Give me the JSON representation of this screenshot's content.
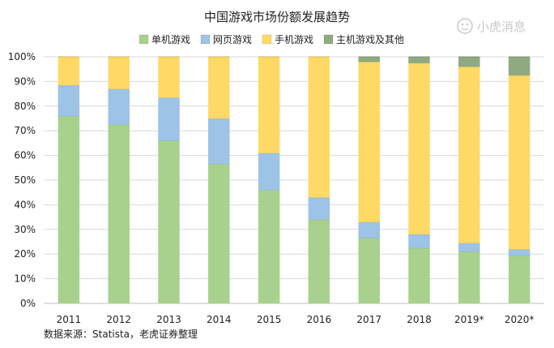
{
  "chart_data": {
    "type": "bar",
    "stacked": true,
    "title": "中国游戏市场份额发展趋势",
    "categories": [
      "2011",
      "2012",
      "2013",
      "2014",
      "2015",
      "2016",
      "2017",
      "2018",
      "2019*",
      "2020*"
    ],
    "series": [
      {
        "name": "单机游戏",
        "color": "#a9d18e",
        "values": [
          76,
          72.5,
          66,
          56.5,
          46,
          34,
          26.5,
          22.5,
          21,
          19.5
        ]
      },
      {
        "name": "网页游戏",
        "color": "#9dc3e6",
        "values": [
          12.5,
          14.5,
          17.5,
          18.5,
          15,
          9,
          6.5,
          5.5,
          3.5,
          2.5
        ]
      },
      {
        "name": "手机游戏",
        "color": "#ffd966",
        "values": [
          11.5,
          13,
          16.5,
          25,
          39,
          57,
          65,
          69.5,
          71.5,
          70.5
        ]
      },
      {
        "name": "主机游戏及其他",
        "color": "#8faa80",
        "values": [
          0,
          0,
          0,
          0,
          0,
          0,
          2,
          2.5,
          4,
          7.5
        ]
      }
    ],
    "ylim": [
      0,
      100
    ],
    "yticks": [
      "0%",
      "10%",
      "20%",
      "30%",
      "40%",
      "50%",
      "60%",
      "70%",
      "80%",
      "90%",
      "100%"
    ],
    "grid": true,
    "legend_position": "top"
  },
  "source_note": "数据来源：Statista，老虎证券整理",
  "watermark": "小虎消息"
}
